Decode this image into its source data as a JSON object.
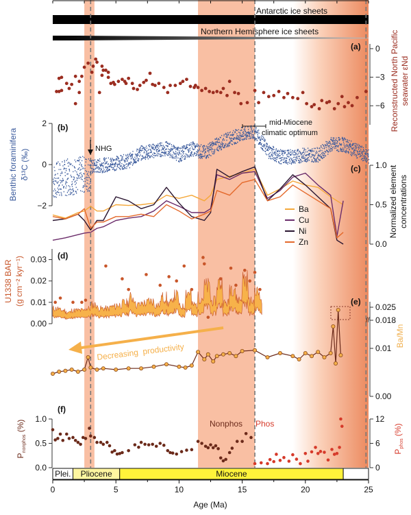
{
  "figure": {
    "xlabel": "Age (Ma)",
    "xlim": [
      0,
      25
    ],
    "xticks": [
      "0",
      "5",
      "10",
      "15",
      "20",
      "25"
    ],
    "xtick_values": [
      0,
      5,
      10,
      15,
      20,
      25
    ],
    "colors": {
      "band": "#f9bfa3",
      "band_strong": "#ef8a62",
      "dash": "#777777",
      "enD": "#9b2d20",
      "d13C": "#3a5a9c",
      "Ba": "#f5a83a",
      "Cu": "#6b2c6a",
      "Ni": "#2a1530",
      "Zn": "#e4692b",
      "BAR_dot": "#c8562a",
      "BAR_fill": "#f7b24a",
      "BaMn_dot": "#f5b04a",
      "BaMn_line": "#6b2a1a",
      "Pnonphos": "#6b2a1a",
      "Pphos": "#d63a2a",
      "epoch_fill": "#fff33a",
      "plio_fill": "#fff6a0",
      "arrow": "#f5b04a"
    },
    "shaded_bands": [
      {
        "from": 2.5,
        "to": 3.3,
        "label": "NHG band"
      },
      {
        "from": 11.5,
        "to": 16.0,
        "label": "Nonphos band"
      },
      {
        "from": 19.0,
        "to": 25.0,
        "label": "Phos gradient"
      }
    ],
    "dashed_lines": [
      3.0,
      16.0,
      24.8
    ]
  },
  "ice_sheets": {
    "antarctic_label": "Antarctic ice sheets",
    "northern_label": "Northern Hemisphere ice sheets"
  },
  "panel_labels": {
    "a": "(a)",
    "b": "(b)",
    "c": "(c)",
    "d": "(d)",
    "e": "(e)",
    "f": "(f)"
  },
  "annotations": {
    "nhg": "NHG",
    "mmco_line1": "mid-Miocene",
    "mmco_line2": "climatic optimum",
    "decreasing": "Decreasing  productivity",
    "nonphos": "Nonphos",
    "phos": "Phos"
  },
  "axes": {
    "a": {
      "label_line1": "Reconstructed North Pacific",
      "label_line2": "seawater εNd",
      "ticks": [
        "0",
        "−3",
        "−6"
      ],
      "tick_values": [
        0,
        -3,
        -6
      ],
      "ylim": [
        -8,
        0
      ]
    },
    "b": {
      "label_line1": "Benthic foraminifera",
      "label_line2": "δ¹³C (‰)",
      "ticks": [
        "2",
        "0",
        "−2"
      ],
      "tick_values": [
        2,
        0,
        -2
      ],
      "ylim": [
        -2,
        2
      ]
    },
    "c": {
      "label_line1": "Normalized element",
      "label_line2": "concentrations",
      "ticks": [
        "1.0",
        "0.5",
        "0.0"
      ],
      "tick_values": [
        1,
        0.5,
        0
      ],
      "ylim": [
        0,
        1
      ]
    },
    "d": {
      "label_line1": "U1338 BAR",
      "label_line2": "(g cm⁻² kyr⁻¹)",
      "ticks": [
        "0.03",
        "0.02",
        "0.01",
        "0.00"
      ],
      "tick_values": [
        0.03,
        0.02,
        0.01,
        0
      ],
      "ylim": [
        0,
        0.035
      ]
    },
    "e": {
      "label": "Ba/Mn",
      "ticks": [
        "0.025",
        "0.018",
        "0.01",
        "0.00"
      ],
      "tick_values": [
        0.025,
        0.018,
        0.01,
        0
      ],
      "ylim": [
        0,
        0.02
      ]
    },
    "f_left": {
      "label_main": "P",
      "label_sub": "nonphos",
      "label_unit": " (%)",
      "ticks": [
        "1.0",
        "0.5",
        "0.0"
      ],
      "tick_values": [
        1,
        0.5,
        0
      ],
      "ylim": [
        0,
        1
      ]
    },
    "f_right": {
      "label_main": "P",
      "label_sub": "phos",
      "label_unit": " (%)",
      "ticks": [
        "12",
        "6",
        "0"
      ],
      "tick_values": [
        12,
        6,
        0
      ],
      "ylim": [
        0,
        12
      ]
    }
  },
  "epochs": [
    {
      "name": "Plei.",
      "from": 0,
      "to": 1.6
    },
    {
      "name": "Pliocene",
      "from": 1.6,
      "to": 5.3
    },
    {
      "name": "Miocene",
      "from": 5.3,
      "to": 23.0
    },
    {
      "name": "",
      "from": 23.0,
      "to": 25.0
    }
  ],
  "chart_data": [
    {
      "type": "scatter",
      "panel": "a",
      "title": "Reconstructed North Pacific seawater εNd",
      "ylabel": "Reconstructed North Pacific seawater εNd",
      "ylim": [
        -8,
        0
      ],
      "x": [
        0.3,
        0.5,
        0.5,
        0.7,
        0.7,
        1.1,
        1.3,
        1.5,
        1.8,
        1.8,
        2.1,
        2.1,
        2.3,
        2.5,
        2.8,
        3.1,
        3.2,
        3.4,
        3.5,
        3.7,
        3.9,
        3.9,
        4.0,
        4.2,
        4.4,
        4.4,
        4.6,
        4.8,
        4.9,
        5.2,
        5.5,
        5.7,
        5.8,
        6.0,
        6.3,
        6.4,
        6.7,
        6.9,
        7.2,
        7.4,
        7.7,
        7.9,
        8.1,
        8.4,
        8.8,
        9.1,
        9.3,
        9.7,
        10.1,
        10.3,
        10.6,
        10.9,
        11.2,
        11.3,
        11.5,
        11.8,
        12.1,
        12.4,
        12.7,
        13.0,
        13.3,
        13.5,
        13.8,
        14.0,
        14.4,
        14.7,
        14.9,
        15.4,
        16.0,
        16.3,
        16.7,
        17.1,
        17.5,
        17.9,
        18.3,
        18.6,
        19.0,
        19.4,
        19.8,
        20.1,
        20.5,
        20.7,
        21.1,
        21.3,
        21.7,
        21.9,
        22.3,
        22.6,
        22.9,
        23.1,
        23.4,
        23.7,
        24.1,
        24.8
      ],
      "y": [
        -4.3,
        -3.0,
        -4.3,
        -2.9,
        -4.2,
        -3.5,
        -4.0,
        -3.6,
        -2.8,
        -5.5,
        -4.4,
        -3.3,
        -2.8,
        -1.9,
        -1.5,
        -2.4,
        -1.8,
        -1.1,
        -1.4,
        -4.4,
        -1.8,
        -2.7,
        -2.2,
        -2.2,
        -2.9,
        -2.4,
        -3.5,
        -3.4,
        -3.6,
        -3.3,
        -3.1,
        -3.3,
        -3.5,
        -3.0,
        -3.5,
        -4.0,
        -4.1,
        -3.7,
        -3.4,
        -3.2,
        -2.5,
        -3.6,
        -3.7,
        -3.5,
        -3.9,
        -4.4,
        -3.7,
        -3.7,
        -3.5,
        -3.3,
        -3.1,
        -3.8,
        -3.9,
        -3.7,
        -3.9,
        -4.2,
        -4.0,
        -4.3,
        -4.4,
        -4.3,
        -4.4,
        -4.0,
        -4.7,
        -3.3,
        -4.4,
        -4.5,
        -5.5,
        -5.4,
        -4.2,
        -5.4,
        -4.4,
        -4.8,
        -4.7,
        -4.3,
        -4.9,
        -4.5,
        -4.9,
        -5.0,
        -4.4,
        -5.5,
        -5.8,
        -5.6,
        -6.0,
        -5.2,
        -5.4,
        -5.3,
        -6.0,
        -5.5,
        -4.8,
        -5.8,
        -5.4,
        -5.7,
        -4.9,
        -4.3
      ]
    },
    {
      "type": "scatter",
      "panel": "b",
      "title": "Benthic foraminifera δ13C",
      "ylabel": "Benthic foraminifera δ13C (‰)",
      "ylim": [
        -2,
        2
      ],
      "trend_x": [
        0,
        1,
        2,
        3,
        4,
        5,
        6,
        7,
        8,
        9,
        10,
        11,
        12,
        13,
        14,
        15,
        16,
        17,
        18,
        19,
        20,
        21,
        22,
        23,
        24,
        25
      ],
      "trend_y": [
        -0.5,
        -0.3,
        -0.2,
        -0.1,
        0.0,
        0.1,
        0.2,
        0.6,
        0.7,
        0.8,
        0.5,
        0.8,
        0.6,
        1.0,
        1.3,
        1.5,
        1.6,
        0.7,
        0.4,
        0.4,
        0.5,
        0.5,
        1.0,
        1.0,
        0.7,
        0.4
      ]
    },
    {
      "type": "line",
      "panel": "c",
      "title": "Normalized element concentrations",
      "ylabel": "Normalized element concentrations",
      "ylim": [
        0,
        1
      ],
      "x": [
        0,
        1,
        2,
        2.5,
        3,
        3.5,
        4,
        5,
        6,
        7,
        8,
        9,
        10,
        11,
        12,
        12.5,
        13,
        14,
        15,
        16,
        17,
        18,
        19,
        20,
        21,
        22,
        22.5,
        23
      ],
      "series": [
        {
          "name": "Ba",
          "values": [
            0.37,
            0.33,
            0.4,
            0.42,
            0.48,
            0.42,
            0.42,
            0.5,
            0.49,
            0.5,
            0.52,
            0.62,
            0.58,
            0.62,
            0.55,
            0.62,
            0.82,
            0.86,
            0.9,
            0.95,
            0.62,
            0.7,
            0.8,
            0.75,
            0.72,
            0.6,
            0.55,
            0.5
          ]
        },
        {
          "name": "Cu",
          "values": [
            0.05,
            0.08,
            0.12,
            0.14,
            0.15,
            0.2,
            0.22,
            0.3,
            0.33,
            0.35,
            0.42,
            0.55,
            0.48,
            0.4,
            0.4,
            0.45,
            0.88,
            0.82,
            0.9,
            0.92,
            0.58,
            0.68,
            0.85,
            0.9,
            0.75,
            0.62,
            0.1,
            0.55
          ]
        },
        {
          "name": "Ni",
          "values": [
            0.3,
            0.32,
            0.38,
            0.3,
            0.18,
            0.3,
            0.3,
            0.6,
            0.55,
            0.45,
            0.5,
            0.72,
            0.52,
            0.35,
            0.3,
            0.4,
            0.95,
            0.85,
            0.92,
            0.98,
            0.55,
            0.7,
            0.88,
            0.75,
            0.6,
            0.45,
            0.05,
            0.0
          ]
        },
        {
          "name": "Zn",
          "values": [
            0.35,
            0.32,
            0.38,
            0.45,
            0.2,
            0.28,
            0.28,
            0.35,
            0.35,
            0.38,
            0.35,
            0.5,
            0.42,
            0.32,
            0.38,
            0.42,
            0.68,
            0.62,
            0.78,
            0.82,
            0.55,
            0.6,
            0.75,
            0.65,
            0.55,
            0.45,
            0.08,
            0.15
          ]
        }
      ],
      "legend": [
        "Ba",
        "Cu",
        "Ni",
        "Zn"
      ],
      "legend_position": "center-right"
    },
    {
      "type": "area",
      "panel": "d",
      "title": "U1338 BAR",
      "ylabel": "U1338 BAR (g cm-2 kyr-1)",
      "ylim": [
        0,
        0.035
      ],
      "x": [
        0,
        0.5,
        1,
        1.5,
        2,
        2.5,
        3,
        3.5,
        4,
        4.5,
        5,
        5.5,
        6,
        6.5,
        7,
        7.5,
        8,
        8.5,
        9,
        9.5,
        10,
        10.5,
        11,
        11.5,
        12,
        12.5,
        13,
        13.5,
        14,
        14.5,
        15,
        15.5,
        16,
        16.5
      ],
      "values": [
        0.006,
        0.005,
        0.004,
        0.005,
        0.005,
        0.006,
        0.008,
        0.006,
        0.006,
        0.007,
        0.008,
        0.009,
        0.012,
        0.008,
        0.009,
        0.01,
        0.008,
        0.012,
        0.009,
        0.013,
        0.007,
        0.015,
        0.008,
        0.012,
        0.018,
        0.01,
        0.02,
        0.009,
        0.018,
        0.011,
        0.022,
        0.01,
        0.015,
        0.009
      ],
      "dots_x": [
        0.2,
        0.6,
        1.6,
        2.3,
        2.6,
        4.2,
        5.5,
        6.0,
        7.4,
        8.5,
        9.2,
        9.8,
        10.4,
        11.0,
        11.9,
        12.0,
        12.3,
        13.3,
        14.1,
        14.5,
        15.2,
        15.6,
        16.0,
        16.4
      ],
      "dots_y": [
        0.01,
        0.012,
        0.01,
        0.01,
        0.011,
        0.027,
        0.021,
        0.016,
        0.023,
        0.018,
        0.022,
        0.02,
        0.027,
        0.016,
        0.031,
        0.028,
        0.003,
        0.021,
        0.026,
        0.018,
        0.025,
        0.02,
        0.024,
        0.016
      ]
    },
    {
      "type": "line",
      "panel": "e",
      "title": "Ba/Mn",
      "ylabel": "Ba/Mn",
      "ylim": [
        0,
        0.02
      ],
      "x": [
        0,
        0.5,
        1,
        1.5,
        2,
        2.5,
        2.8,
        3.0,
        3.5,
        4,
        5,
        6,
        7,
        8,
        9,
        10,
        10.5,
        11,
        11.5,
        12,
        12.3,
        12.7,
        13,
        13.5,
        14,
        14.5,
        15,
        16,
        17,
        18,
        19,
        19.5,
        20,
        20.5,
        21,
        21.5,
        22,
        22.2,
        22.4,
        22.6,
        22.8
      ],
      "values": [
        0.0025,
        0.003,
        0.0032,
        0.0035,
        0.003,
        0.0035,
        0.0065,
        0.004,
        0.0035,
        0.0038,
        0.0035,
        0.0038,
        0.0038,
        0.0042,
        0.0048,
        0.0042,
        0.004,
        0.0045,
        0.0078,
        0.006,
        0.0072,
        0.0055,
        0.0068,
        0.0072,
        0.0075,
        0.0068,
        0.008,
        0.0082,
        0.0065,
        0.0075,
        0.0068,
        0.006,
        0.0075,
        0.0068,
        0.0078,
        0.0065,
        0.0075,
        0.014,
        0.005,
        0.018,
        0.007
      ]
    },
    {
      "type": "scatter",
      "panel": "f",
      "title": "Pnonphos and Pphos",
      "series": [
        {
          "name": "Pnonphos (%)",
          "axis": "left",
          "ylim": [
            0,
            1
          ],
          "x": [
            0.0,
            0.2,
            0.4,
            0.6,
            0.8,
            1.1,
            1.3,
            1.6,
            1.8,
            2.0,
            2.2,
            2.4,
            2.6,
            2.9,
            3.0,
            3.3,
            3.5,
            3.8,
            4.0,
            4.3,
            4.5,
            4.7,
            4.9,
            5.1,
            5.3,
            5.5,
            6.0,
            6.5,
            6.8,
            7.0,
            7.3,
            7.6,
            7.9,
            8.2,
            8.5,
            8.8,
            9.1,
            9.3,
            9.5,
            9.8,
            10.2,
            10.6,
            11.0,
            11.5,
            11.8,
            12.1,
            12.3,
            12.5,
            12.7,
            12.9,
            13.1,
            13.3,
            13.5,
            13.7,
            14.0,
            14.2,
            14.6,
            15.0,
            15.3,
            15.7
          ],
          "values": [
            0.78,
            0.57,
            0.6,
            0.69,
            0.56,
            0.69,
            0.6,
            0.62,
            0.56,
            0.52,
            0.48,
            0.62,
            0.6,
            0.81,
            0.65,
            0.62,
            0.52,
            0.52,
            0.48,
            0.52,
            0.45,
            0.32,
            0.35,
            0.28,
            0.29,
            0.31,
            0.35,
            0.47,
            0.42,
            0.52,
            0.48,
            0.47,
            0.48,
            0.44,
            0.5,
            0.46,
            0.35,
            0.31,
            0.3,
            0.28,
            0.33,
            0.36,
            0.37,
            0.54,
            0.5,
            0.44,
            0.41,
            0.47,
            0.41,
            0.45,
            0.39,
            0.2,
            0.14,
            0.17,
            0.31,
            0.4,
            0.54,
            0.54,
            0.7,
            0.62
          ]
        },
        {
          "name": "Pphos (%)",
          "axis": "right",
          "ylim": [
            0,
            12
          ],
          "x": [
            16.0,
            16.5,
            17.0,
            17.2,
            17.5,
            17.7,
            18.0,
            18.3,
            18.7,
            19.0,
            19.3,
            19.6,
            20.0,
            20.2,
            20.5,
            20.8,
            21.0,
            21.2,
            21.5,
            21.8,
            22.1,
            22.3,
            22.5,
            22.7,
            22.8,
            22.9
          ],
          "values": [
            1.0,
            1.2,
            1.0,
            2.0,
            1.5,
            3.3,
            1.8,
            2.5,
            1.6,
            3.2,
            2.1,
            1.0,
            3.5,
            1.6,
            3.9,
            5.0,
            3.5,
            4.0,
            3.8,
            1.9,
            4.5,
            3.3,
            3.5,
            5.0,
            12.0,
            10.2
          ]
        }
      ]
    }
  ]
}
